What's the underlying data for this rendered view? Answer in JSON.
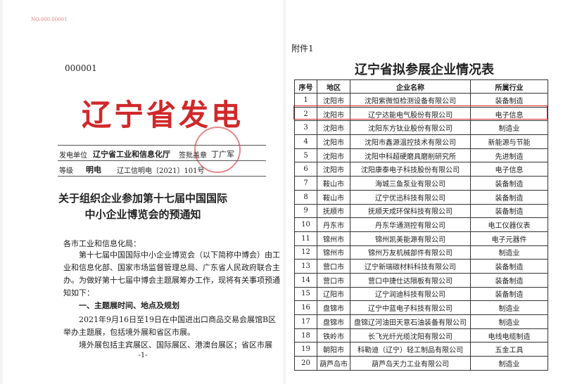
{
  "left_page": {
    "serial": "NO.000.00001",
    "doc_no": "000001",
    "issuer_title": "辽宁省发电",
    "sender_label": "发电单位",
    "sender": "辽宁省工业和信息化厅",
    "sign_label": "签批盖章",
    "signer": "丁广军",
    "level_label": "等级",
    "level": "明电",
    "ref": "辽工信明电〔2021〕101号",
    "title_lines": [
      "关于组织企业参加第十七届中国国际",
      "中小企业博览会的预通知"
    ],
    "salutation": "各市工业和信息化局：",
    "intro_lines": [
      "第十七届中国国际中小企业博览会（以下简称中博会）由工",
      "业和信息化部、国家市场监督管理总局、广东省人民政府联合主",
      "办。为做好第十七届中博会主题展筹办工作，现将有关事项预通",
      "知如下："
    ],
    "section_heading": "一、主题展时间、地点及规划",
    "section_lines": [
      "2021年9月16日至19日在中国进出口商品交易会展馆B区",
      "举办主题展，包括境外展和省区市展。",
      "境外展包括主宾展区、国际展区、港澳台展区；省区市展"
    ],
    "page_number": "-1-"
  },
  "right_page": {
    "attachment": "附件1",
    "title": "辽宁省拟参展企业情况表",
    "table": {
      "header": [
        "序号",
        "地区",
        "企业名称",
        "所属行业"
      ],
      "rows": [
        [
          "1",
          "沈阳市",
          "沈阳紫微恒检测设备有限公司",
          "装备制造"
        ],
        [
          "2",
          "沈阳市",
          "辽宁达能电气股份有限公司",
          "电子信息"
        ],
        [
          "3",
          "沈阳市",
          "沈阳东方钛业股份有限公司",
          "制造业"
        ],
        [
          "4",
          "沈阳市",
          "沈阳市鑫源温控技术有限公司",
          "新能源与节能"
        ],
        [
          "5",
          "沈阳市",
          "沈阳中科超硬磨具磨削研究所",
          "先进制造"
        ],
        [
          "6",
          "沈阳市",
          "沈阳康泰电子科技股份有限公司",
          "电子信息"
        ],
        [
          "7",
          "鞍山市",
          "海城三鱼泵业有限公司",
          "装备制造"
        ],
        [
          "8",
          "鞍山市",
          "辽宁优迅科技有限公司",
          "装备制造"
        ],
        [
          "9",
          "抚顺市",
          "抚顺天成环保科技有限公司",
          "装备制造"
        ],
        [
          "10",
          "丹东市",
          "丹东华通测控有限公司",
          "电工仪器仪表"
        ],
        [
          "11",
          "锦州市",
          "锦州凯美能源有限公司",
          "电子元器件"
        ],
        [
          "12",
          "锦州市",
          "锦州万友机械部件有限公司",
          "制造业"
        ],
        [
          "13",
          "营口市",
          "辽宁新瑞碳材料科技有限公司",
          "装备制造"
        ],
        [
          "14",
          "营口市",
          "营口中捷仕达隔板有限公司",
          "装备制造"
        ],
        [
          "15",
          "辽阳市",
          "辽宁润迪科技有限公司",
          "装备制造"
        ],
        [
          "16",
          "盘锦市",
          "辽宁中蓝电子科技有限公司",
          "制造业"
        ],
        [
          "17",
          "盘锦市",
          "盘锦辽河油田天意石油装备有限公司",
          "制造业"
        ],
        [
          "18",
          "铁岭市",
          "长飞光纤光缆沈阳有限公司",
          "电线电缆制造"
        ],
        [
          "19",
          "朝阳市",
          "科勒迪（辽宁）轻工制品有限公司",
          "五金工具"
        ],
        [
          "20",
          "葫芦岛市",
          "葫芦岛天力工业有限公司",
          "制造业"
        ]
      ]
    }
  }
}
